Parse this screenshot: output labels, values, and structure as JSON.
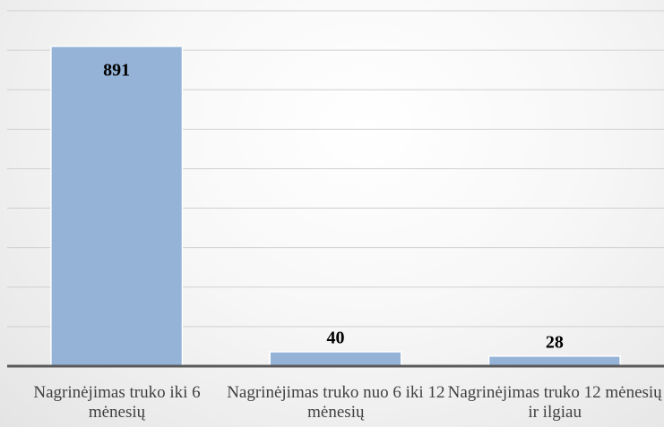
{
  "chart_data": {
    "type": "bar",
    "categories": [
      "Nagrinėjimas truko iki 6 mėnesių",
      "Nagrinėjimas truko nuo 6 iki 12 mėnesių",
      "Nagrinėjimas truko 12 mėnesių ir ilgiau"
    ],
    "values": [
      891,
      40,
      28
    ],
    "color": "#95b3d7",
    "ylim": [
      0,
      990
    ],
    "yticks": [
      0,
      110,
      220,
      330,
      440,
      550,
      660,
      770,
      880,
      990
    ],
    "grid": true
  }
}
